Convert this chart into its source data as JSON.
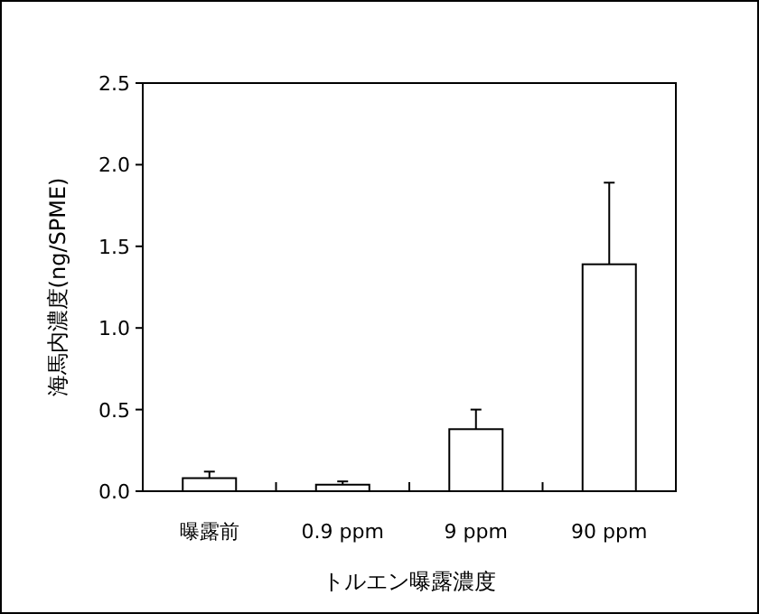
{
  "chart_data": {
    "type": "bar",
    "xlabel": "トルエン曝露濃度",
    "ylabel": "海馬内濃度(ng/SPME)",
    "categories": [
      "曝露前",
      "0.9 ppm",
      "9 ppm",
      "90 ppm"
    ],
    "values": [
      0.08,
      0.04,
      0.38,
      1.39
    ],
    "errors": [
      [
        0.08,
        0.12
      ],
      [
        0.04,
        0.06
      ],
      [
        0.38,
        0.5
      ],
      [
        1.39,
        1.89
      ]
    ],
    "color": "#ffffff",
    "ylim": [
      0,
      2.5
    ],
    "yticks": [
      {
        "value": 0,
        "label": "0.0"
      },
      {
        "value": 0.5,
        "label": "0.5"
      },
      {
        "value": 1,
        "label": "1.0"
      },
      {
        "value": 1.5,
        "label": "1.5"
      },
      {
        "value": 2,
        "label": "2.0"
      },
      {
        "value": 2.5,
        "label": "2.5"
      }
    ]
  }
}
